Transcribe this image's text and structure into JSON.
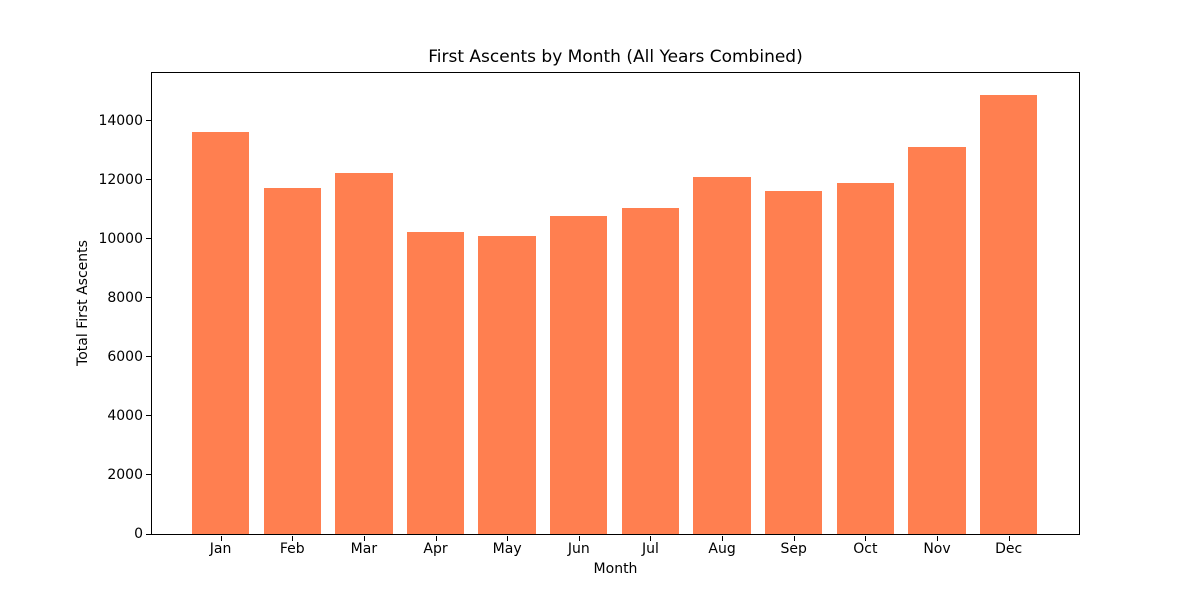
{
  "chart_data": {
    "type": "bar",
    "title": "First Ascents by Month (All Years Combined)",
    "xlabel": "Month",
    "ylabel": "Total First Ascents",
    "categories": [
      "Jan",
      "Feb",
      "Mar",
      "Apr",
      "May",
      "Jun",
      "Jul",
      "Aug",
      "Sep",
      "Oct",
      "Nov",
      "Dec"
    ],
    "values": [
      13620,
      11740,
      12240,
      10250,
      10110,
      10790,
      11050,
      12100,
      11630,
      11880,
      13100,
      14880
    ],
    "yticks": [
      0,
      2000,
      4000,
      6000,
      8000,
      10000,
      12000,
      14000
    ],
    "ylim": [
      0,
      15620
    ],
    "grid": false,
    "legend": null,
    "bar_color": "#FF7F50",
    "axis_color": "#000000",
    "text_color": "#000000",
    "background_color": "#FFFFFF"
  }
}
